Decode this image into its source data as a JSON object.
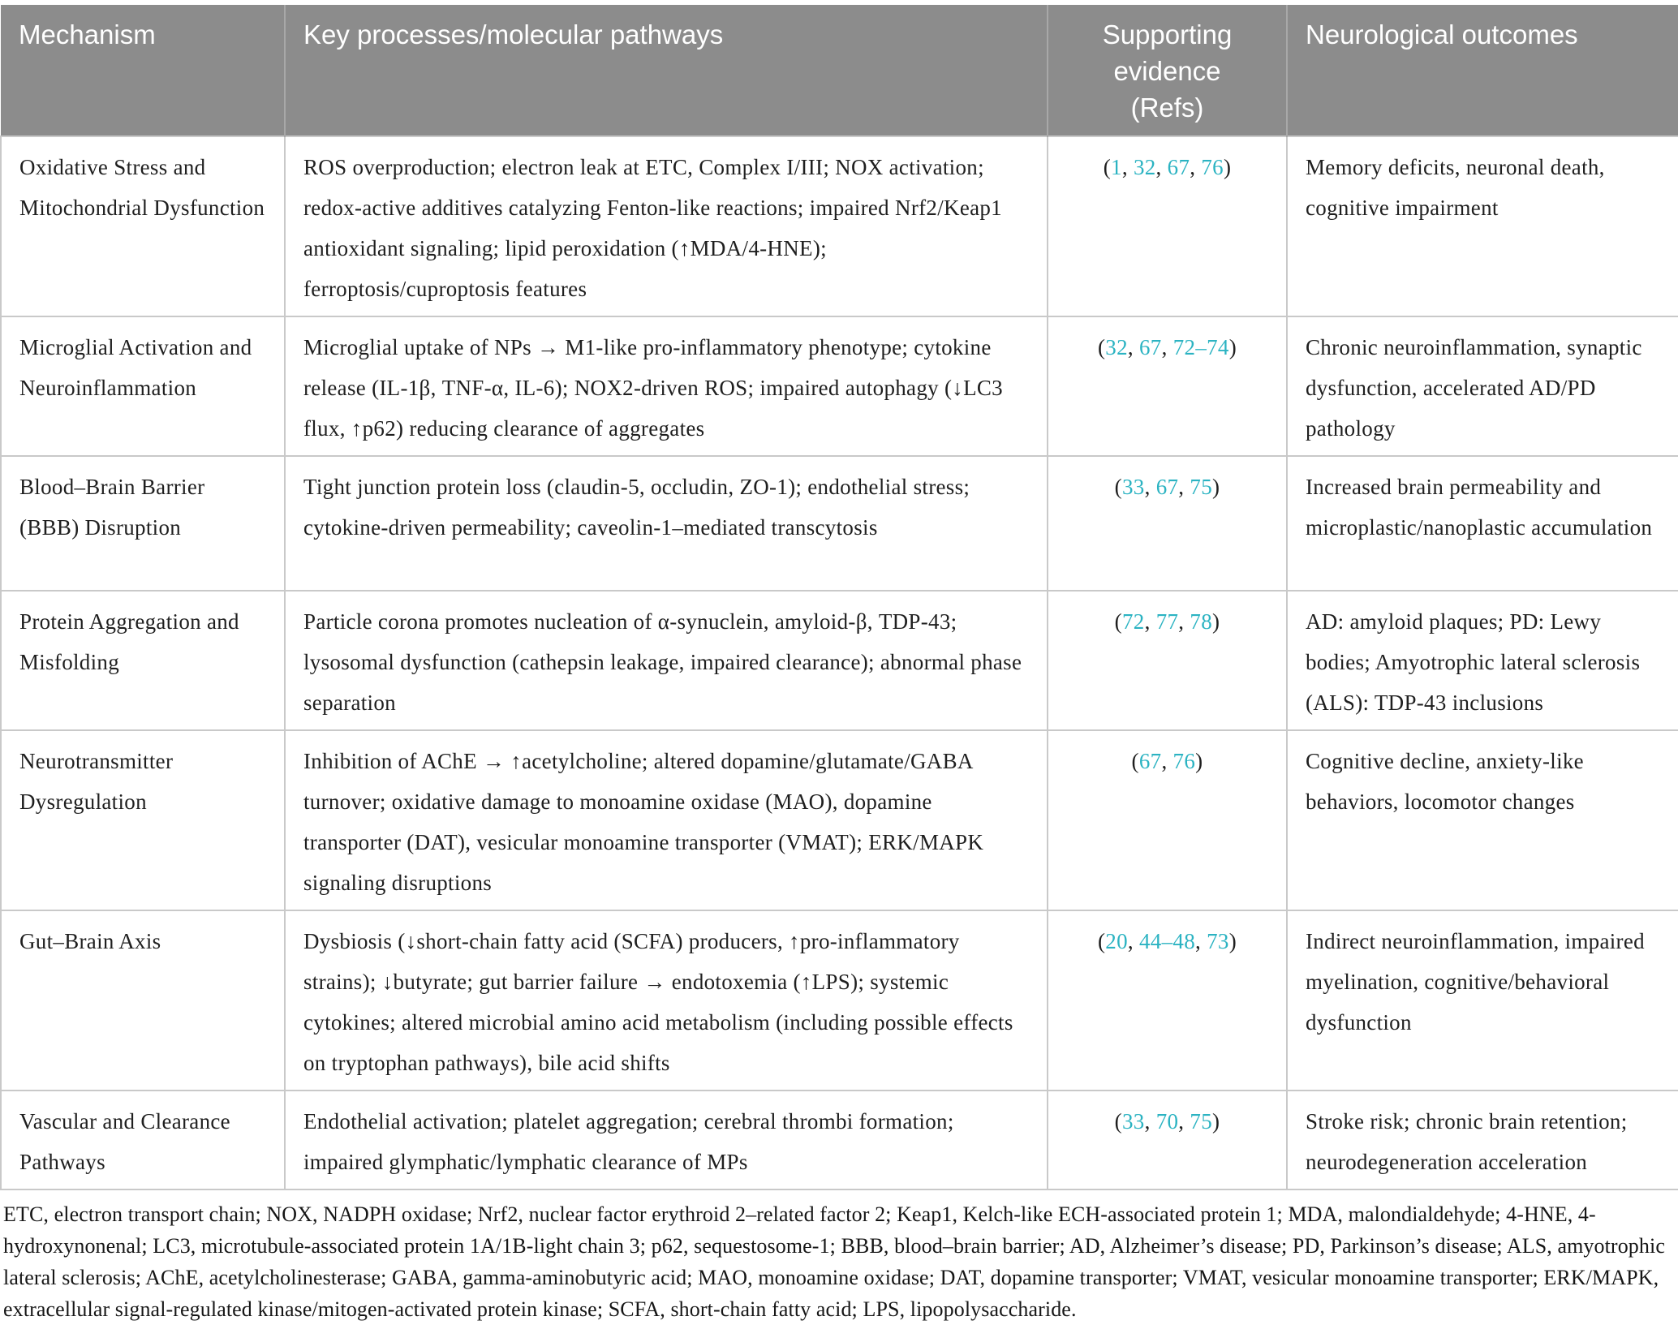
{
  "colors": {
    "header_bg": "#8c8c8c",
    "header_text": "#ffffff",
    "body_text": "#1f1f1f",
    "link_teal": "#2bb3c2",
    "border": "#c9c9c9",
    "header_divider": "#a8a8a8"
  },
  "header": {
    "col_mechanism": "Mechanism",
    "col_processes": "Key processes/molecular pathways",
    "col_evidence_lines": [
      "Supporting",
      "evidence",
      "(Refs)"
    ],
    "col_outcomes": "Neurological outcomes"
  },
  "rows": [
    {
      "mechanism": "Oxidative Stress and Mitochondrial Dysfunction",
      "processes": "ROS overproduction; electron leak at ETC, Complex I/III; NOX activation; redox-active additives catalyzing Fenton-like reactions; impaired Nrf2/Keap1 antioxidant signaling; lipid peroxidation (↑MDA/4-HNE); ferroptosis/cuproptosis features",
      "refs": [
        "1",
        "32",
        "67",
        "76"
      ],
      "outcomes": "Memory deficits, neuronal death, cognitive impairment"
    },
    {
      "mechanism": "Microglial Activation and Neuroinflammation",
      "processes": "Microglial uptake of NPs → M1-like pro-inflammatory phenotype; cytokine release (IL-1β, TNF-α, IL-6); NOX2-driven ROS; impaired autophagy (↓LC3 flux, ↑p62) reducing clearance of aggregates",
      "refs": [
        "32",
        "67",
        "72–74"
      ],
      "outcomes": "Chronic neuroinflammation, synaptic dysfunction, accelerated AD/PD pathology"
    },
    {
      "mechanism": "Blood–Brain Barrier (BBB) Disruption",
      "processes": "Tight junction protein loss (claudin-5, occludin, ZO-1); endothelial stress; cytokine-driven permeability; caveolin-1–mediated transcytosis",
      "refs": [
        "33",
        "67",
        "75"
      ],
      "outcomes": "Increased brain permeability and microplastic/nanoplastic accumulation"
    },
    {
      "mechanism": "Protein Aggregation and Misfolding",
      "processes": "Particle corona promotes nucleation of α-synuclein, amyloid-β, TDP-43; lysosomal dysfunction (cathepsin leakage, impaired clearance); abnormal phase separation",
      "refs": [
        "72",
        "77",
        "78"
      ],
      "outcomes": "AD: amyloid plaques; PD: Lewy bodies; Amyotrophic lateral sclerosis (ALS): TDP-43 inclusions"
    },
    {
      "mechanism": "Neurotransmitter Dysregulation",
      "processes": "Inhibition of AChE → ↑acetylcholine; altered dopamine/glutamate/GABA turnover; oxidative damage to monoamine oxidase (MAO), dopamine transporter (DAT), vesicular monoamine transporter (VMAT); ERK/MAPK signaling disruptions",
      "refs": [
        "67",
        "76"
      ],
      "outcomes": "Cognitive decline, anxiety-like behaviors, locomotor changes"
    },
    {
      "mechanism": "Gut–Brain Axis",
      "processes": "Dysbiosis (↓short-chain fatty acid (SCFA) producers, ↑pro-inflammatory strains); ↓butyrate; gut barrier failure → endotoxemia (↑LPS); systemic cytokines; altered microbial amino acid metabolism (including possible effects on tryptophan pathways), bile acid shifts",
      "refs": [
        "20",
        "44–48",
        "73"
      ],
      "outcomes": "Indirect neuroinflammation, impaired myelination, cognitive/behavioral dysfunction"
    },
    {
      "mechanism": "Vascular and Clearance Pathways",
      "processes": "Endothelial activation; platelet aggregation; cerebral thrombi formation; impaired glymphatic/lymphatic clearance of MPs",
      "refs": [
        "33",
        "70",
        "75"
      ],
      "outcomes": "Stroke risk; chronic brain retention; neurodegeneration acceleration"
    }
  ],
  "footnote": "ETC, electron transport chain; NOX, NADPH oxidase; Nrf2, nuclear factor erythroid 2–related factor 2; Keap1, Kelch-like ECH-associated protein 1; MDA, malondialdehyde; 4-HNE, 4-hydroxynonenal; LC3, microtubule-associated protein 1A/1B-light chain 3; p62, sequestosome-1; BBB, blood–brain barrier; AD, Alzheimer’s disease; PD, Parkinson’s disease; ALS, amyotrophic lateral sclerosis; AChE, acetylcholinesterase; GABA, gamma-aminobutyric acid; MAO, monoamine oxidase; DAT, dopamine transporter; VMAT, vesicular monoamine transporter; ERK/MAPK, extracellular signal-regulated kinase/mitogen-activated protein kinase; SCFA, short-chain fatty acid; LPS, lipopolysaccharide."
}
